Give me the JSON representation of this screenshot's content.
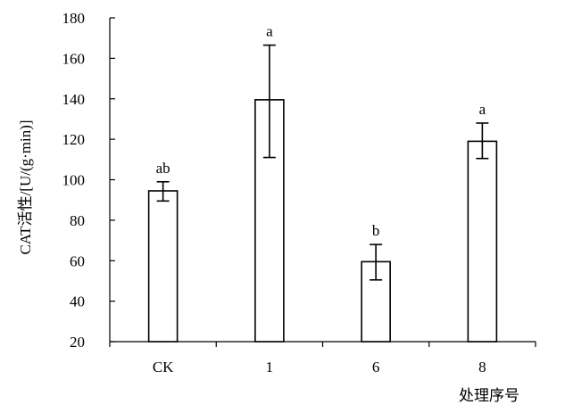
{
  "chart_data": {
    "type": "bar",
    "categories": [
      "CK",
      "1",
      "6",
      "8"
    ],
    "values": [
      94.5,
      139.5,
      59.5,
      119
    ],
    "error": [
      {
        "low": 89.5,
        "high": 99
      },
      {
        "low": 111,
        "high": 166.5
      },
      {
        "low": 50.5,
        "high": 68
      },
      {
        "low": 110.5,
        "high": 128
      }
    ],
    "annotations": [
      "ab",
      "a",
      "b",
      "a"
    ],
    "ylabel": "CAT活性/[U/(g·min)]",
    "xlabel": "处理序号",
    "ylim": [
      20,
      180
    ],
    "yticks": [
      20,
      40,
      60,
      80,
      100,
      120,
      140,
      160,
      180
    ],
    "grid": false,
    "bar_fill": "#ffffff",
    "bar_stroke": "#000000"
  }
}
